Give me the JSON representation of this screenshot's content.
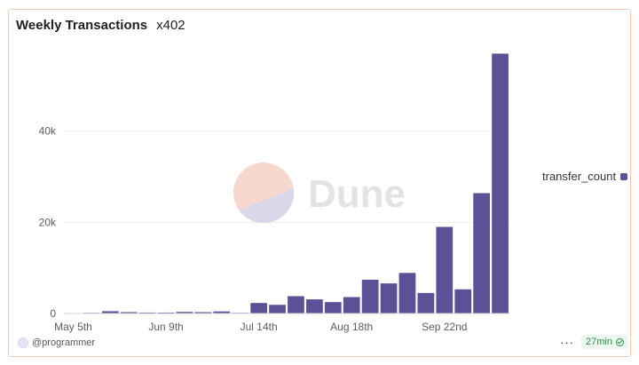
{
  "header": {
    "title": "Weekly Transactions",
    "subtitle": "x402"
  },
  "watermark": {
    "text": "Dune"
  },
  "legend": {
    "label": "transfer_count"
  },
  "footer": {
    "author": "@programmer",
    "age": "27min",
    "more_icon": "ellipsis-icon",
    "status_icon": "check-circle-icon"
  },
  "colors": {
    "bar": "#5a5197",
    "accent_border": "#f1c7b6",
    "grid": "#eeeeee",
    "badge_text": "#2f8a47"
  },
  "chart_data": {
    "type": "bar",
    "title": "Weekly Transactions",
    "xlabel": "",
    "ylabel": "",
    "ylim": [
      0,
      60000
    ],
    "yticks": [
      0,
      20000,
      40000
    ],
    "ytick_labels": [
      "0",
      "20k",
      "40k"
    ],
    "xtick_labels": [
      "May 5th",
      "Jun 9th",
      "Jul 14th",
      "Aug 18th",
      "Sep 22nd"
    ],
    "xtick_index": [
      0,
      5,
      10,
      15,
      20
    ],
    "grid": true,
    "legend_position": "right",
    "series": [
      {
        "name": "transfer_count",
        "values": [
          100,
          150,
          500,
          300,
          200,
          200,
          350,
          300,
          450,
          150,
          2300,
          1900,
          3800,
          3100,
          2500,
          3600,
          7400,
          6600,
          8900,
          4500,
          19000,
          5300,
          26400,
          57000
        ]
      }
    ]
  }
}
